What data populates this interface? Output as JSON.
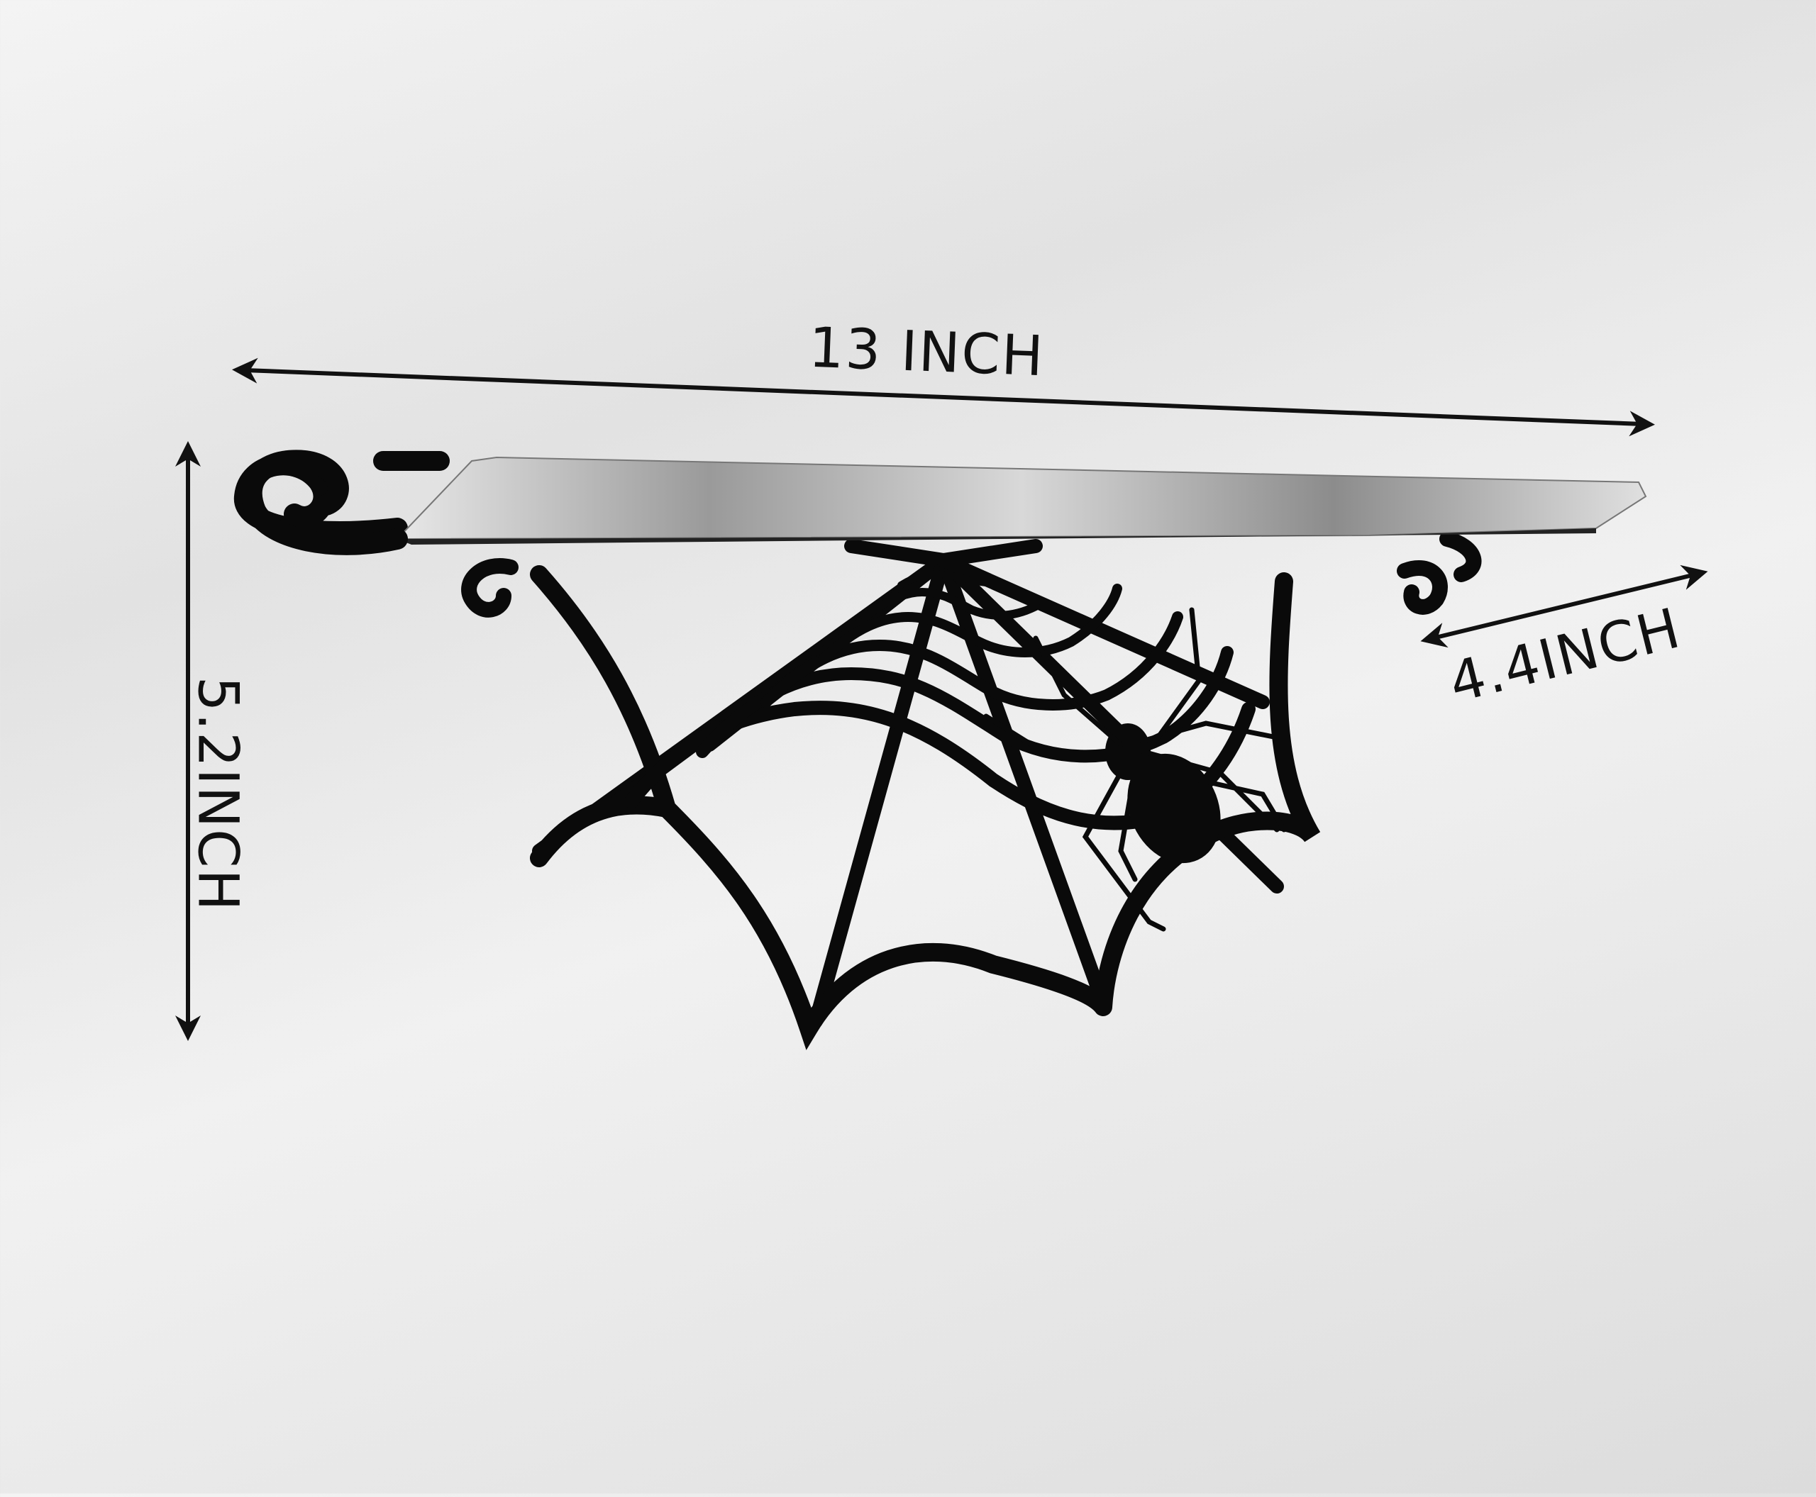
{
  "dimensions": {
    "width": "13 INCH",
    "depth": "4.4INCH",
    "height": "5.2INCH"
  },
  "product": {
    "shelf_color": "#bdbdbd",
    "bracket_color": "#0a0a0a"
  }
}
